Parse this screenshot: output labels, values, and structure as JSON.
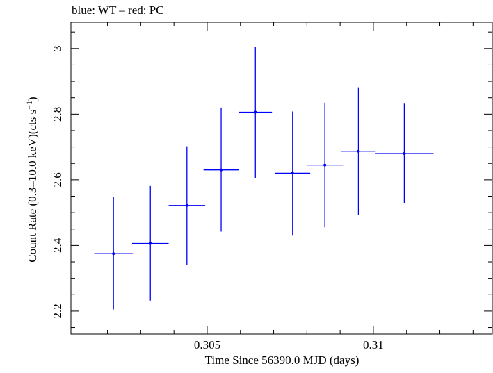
{
  "chart_data": {
    "type": "scatter",
    "title": "blue: WT – red: PC",
    "xlabel": "Time Since 56390.0 MJD (days)",
    "ylabel_prefix": "Count Rate (0.3–10.0 keV)(cts s",
    "ylabel_sup": "−1",
    "ylabel_suffix": ")",
    "xlim": [
      0.3009,
      0.3136
    ],
    "ylim": [
      2.13,
      3.08
    ],
    "x_ticks": [
      {
        "value": 0.305,
        "label": "0.305"
      },
      {
        "value": 0.31,
        "label": "0.31"
      }
    ],
    "y_ticks": [
      {
        "value": 2.2,
        "label": "2.2"
      },
      {
        "value": 2.4,
        "label": "2.4"
      },
      {
        "value": 2.6,
        "label": "2.6"
      },
      {
        "value": 2.8,
        "label": "2.8"
      },
      {
        "value": 3.0,
        "label": "3"
      }
    ],
    "series": [
      {
        "name": "WT",
        "color": "#0000ff",
        "points": [
          {
            "x": 0.30218,
            "y": 2.375,
            "xerr": 0.00058,
            "yerr_low": 0.17,
            "yerr_high": 0.172
          },
          {
            "x": 0.30329,
            "y": 2.406,
            "xerr": 0.00055,
            "yerr_low": 0.174,
            "yerr_high": 0.175
          },
          {
            "x": 0.30439,
            "y": 2.522,
            "xerr": 0.00055,
            "yerr_low": 0.181,
            "yerr_high": 0.18
          },
          {
            "x": 0.30542,
            "y": 2.63,
            "xerr": 0.00053,
            "yerr_low": 0.188,
            "yerr_high": 0.19
          },
          {
            "x": 0.30645,
            "y": 2.806,
            "xerr": 0.0005,
            "yerr_low": 0.2,
            "yerr_high": 0.2
          },
          {
            "x": 0.30757,
            "y": 2.62,
            "xerr": 0.00053,
            "yerr_low": 0.19,
            "yerr_high": 0.188
          },
          {
            "x": 0.30854,
            "y": 2.645,
            "xerr": 0.00055,
            "yerr_low": 0.19,
            "yerr_high": 0.19
          },
          {
            "x": 0.30955,
            "y": 2.687,
            "xerr": 0.00052,
            "yerr_low": 0.193,
            "yerr_high": 0.195
          },
          {
            "x": 0.31093,
            "y": 2.68,
            "xerr": 0.00088,
            "yerr_low": 0.15,
            "yerr_high": 0.152
          }
        ]
      }
    ]
  }
}
